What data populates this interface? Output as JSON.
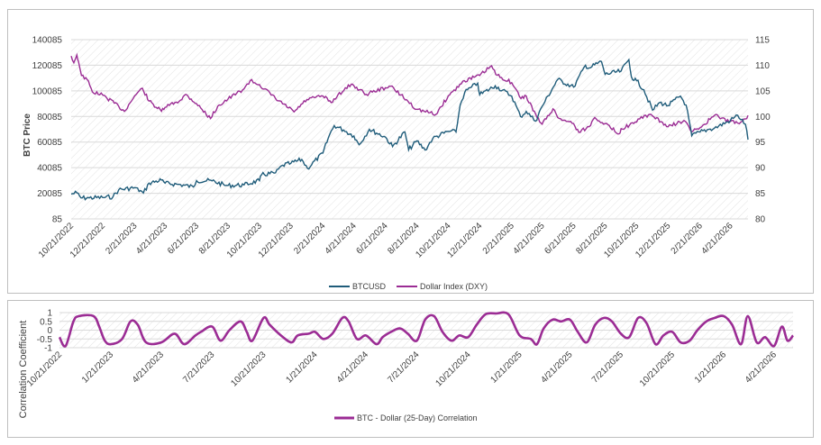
{
  "colors": {
    "btc": "#1f5c7a",
    "dxy": "#9b2c94",
    "corr": "#9b2c94",
    "grid": "#d9d9d9",
    "hatch": "#e3e3e3"
  },
  "chart_data": [
    {
      "type": "line",
      "ylabel": "BTC Price",
      "ylim": [
        85,
        140085
      ],
      "y2lim": [
        80,
        115
      ],
      "y_ticks": [
        "140085",
        "120085",
        "100085",
        "80085",
        "60085",
        "40085",
        "20085",
        "85"
      ],
      "y2_ticks": [
        "115",
        "110",
        "105",
        "100",
        "95",
        "90",
        "85",
        "80"
      ],
      "x_ticks": [
        "10/21/2022",
        "12/21/2022",
        "2/21/2023",
        "4/21/2023",
        "6/21/2023",
        "8/21/2023",
        "10/21/2023",
        "12/21/2023",
        "2/21/2024",
        "4/21/2024",
        "6/21/2024",
        "8/21/2024",
        "10/21/2024",
        "12/21/2024",
        "2/21/2025",
        "4/21/2025",
        "6/21/2025",
        "8/21/2025",
        "10/21/2025",
        "12/21/2025",
        "2/21/2026",
        "4/21/2026"
      ],
      "legend_position": "bottom",
      "series": [
        {
          "name": "BTCUSD",
          "axis": "left",
          "points": [
            [
              "10/21/2022",
              19500
            ],
            [
              "11/1/2022",
              20500
            ],
            [
              "11/9/2022",
              16500
            ],
            [
              "11/25/2022",
              16500
            ],
            [
              "12/21/2022",
              16800
            ],
            [
              "1/10/2023",
              17400
            ],
            [
              "1/21/2023",
              22800
            ],
            [
              "2/21/2023",
              24500
            ],
            [
              "3/10/2023",
              20300
            ],
            [
              "3/21/2023",
              28000
            ],
            [
              "4/14/2023",
              30400
            ],
            [
              "4/21/2023",
              28000
            ],
            [
              "5/21/2023",
              26800
            ],
            [
              "6/15/2023",
              25000
            ],
            [
              "6/21/2023",
              30000
            ],
            [
              "7/21/2023",
              29800
            ],
            [
              "8/17/2023",
              26200
            ],
            [
              "8/21/2023",
              26100
            ],
            [
              "9/21/2023",
              26600
            ],
            [
              "10/21/2023",
              30000
            ],
            [
              "10/25/2023",
              34500
            ],
            [
              "11/21/2023",
              36000
            ],
            [
              "12/5/2023",
              42000
            ],
            [
              "12/21/2023",
              43500
            ],
            [
              "1/11/2024",
              46500
            ],
            [
              "1/22/2024",
              39500
            ],
            [
              "2/21/2024",
              51500
            ],
            [
              "3/5/2024",
              66000
            ],
            [
              "3/14/2024",
              73000
            ],
            [
              "4/1/2024",
              69500
            ],
            [
              "4/21/2024",
              64900
            ],
            [
              "5/1/2024",
              58000
            ],
            [
              "5/21/2024",
              70000
            ],
            [
              "6/21/2024",
              64000
            ],
            [
              "7/5/2024",
              56500
            ],
            [
              "7/29/2024",
              68000
            ],
            [
              "8/5/2024",
              54000
            ],
            [
              "8/21/2024",
              61000
            ],
            [
              "9/6/2024",
              53900
            ],
            [
              "9/21/2024",
              63000
            ],
            [
              "10/21/2024",
              68500
            ],
            [
              "11/5/2024",
              68000
            ],
            [
              "11/13/2024",
              89000
            ],
            [
              "11/22/2024",
              99000
            ],
            [
              "12/5/2024",
              103000
            ],
            [
              "12/17/2024",
              106000
            ],
            [
              "12/21/2024",
              97000
            ],
            [
              "1/20/2025",
              104000
            ],
            [
              "2/21/2025",
              96000
            ],
            [
              "3/10/2025",
              80000
            ],
            [
              "3/21/2025",
              84000
            ],
            [
              "4/8/2025",
              76500
            ],
            [
              "4/21/2025",
              88000
            ],
            [
              "5/21/2025",
              109000
            ],
            [
              "6/21/2025",
              103000
            ],
            [
              "7/14/2025",
              120000
            ],
            [
              "7/21/2025",
              118000
            ],
            [
              "8/14/2025",
              123000
            ],
            [
              "8/21/2025",
              113000
            ],
            [
              "9/21/2025",
              115500
            ],
            [
              "10/6/2025",
              124500
            ],
            [
              "10/11/2025",
              111000
            ],
            [
              "10/21/2025",
              108000
            ],
            [
              "11/4/2025",
              101000
            ],
            [
              "11/21/2025",
              85000
            ],
            [
              "12/5/2025",
              91000
            ],
            [
              "12/21/2025",
              88500
            ],
            [
              "1/14/2026",
              96000
            ],
            [
              "1/25/2026",
              89000
            ],
            [
              "2/5/2026",
              65000
            ],
            [
              "2/21/2026",
              68000
            ],
            [
              "3/10/2026",
              70000
            ],
            [
              "3/21/2026",
              71000
            ],
            [
              "4/21/2026",
              77000
            ],
            [
              "5/5/2026",
              81000
            ],
            [
              "5/20/2026",
              74000
            ],
            [
              "5/25/2026",
              62000
            ]
          ]
        },
        {
          "name": "Dollar Index (DXY)",
          "axis": "right",
          "points": [
            [
              "10/21/2022",
              111.8
            ],
            [
              "10/26/2022",
              110.5
            ],
            [
              "11/1/2022",
              112.0
            ],
            [
              "11/4/2022",
              110.8
            ],
            [
              "11/10/2022",
              108.0
            ],
            [
              "11/21/2022",
              107.2
            ],
            [
              "12/1/2022",
              104.8
            ],
            [
              "12/21/2022",
              104.2
            ],
            [
              "1/21/2023",
              102.0
            ],
            [
              "2/1/2023",
              101.0
            ],
            [
              "2/21/2023",
              104.0
            ],
            [
              "3/8/2023",
              105.5
            ],
            [
              "3/21/2023",
              103.0
            ],
            [
              "4/14/2023",
              101.0
            ],
            [
              "4/21/2023",
              101.8
            ],
            [
              "5/21/2023",
              103.2
            ],
            [
              "5/31/2023",
              104.3
            ],
            [
              "6/21/2023",
              102.5
            ],
            [
              "7/18/2023",
              99.6
            ],
            [
              "8/1/2023",
              102.0
            ],
            [
              "8/21/2023",
              103.4
            ],
            [
              "9/21/2023",
              105.4
            ],
            [
              "10/3/2023",
              107.0
            ],
            [
              "10/21/2023",
              106.2
            ],
            [
              "11/21/2023",
              103.5
            ],
            [
              "12/27/2023",
              100.9
            ],
            [
              "1/21/2024",
              103.3
            ],
            [
              "2/21/2024",
              104.0
            ],
            [
              "3/8/2024",
              102.7
            ],
            [
              "3/21/2024",
              104.2
            ],
            [
              "4/16/2024",
              106.3
            ],
            [
              "4/21/2024",
              106.0
            ],
            [
              "5/15/2024",
              104.3
            ],
            [
              "5/21/2024",
              104.6
            ],
            [
              "6/21/2024",
              105.6
            ],
            [
              "7/1/2024",
              105.9
            ],
            [
              "7/21/2024",
              104.2
            ],
            [
              "8/21/2024",
              101.4
            ],
            [
              "9/27/2024",
              100.4
            ],
            [
              "10/21/2024",
              104.0
            ],
            [
              "11/21/2024",
              107.0
            ],
            [
              "12/21/2024",
              108.0
            ],
            [
              "1/13/2025",
              109.9
            ],
            [
              "1/21/2025",
              108.2
            ],
            [
              "2/21/2025",
              106.6
            ],
            [
              "3/11/2025",
              103.5
            ],
            [
              "3/21/2025",
              104.0
            ],
            [
              "4/11/2025",
              99.8
            ],
            [
              "4/21/2025",
              98.5
            ],
            [
              "5/12/2025",
              101.5
            ],
            [
              "5/21/2025",
              99.8
            ],
            [
              "6/21/2025",
              98.6
            ],
            [
              "7/1/2025",
              96.9
            ],
            [
              "7/21/2025",
              98.0
            ],
            [
              "8/1/2025",
              99.8
            ],
            [
              "8/21/2025",
              98.6
            ],
            [
              "9/17/2025",
              96.6
            ],
            [
              "9/21/2025",
              97.6
            ],
            [
              "10/21/2025",
              98.9
            ],
            [
              "11/5/2025",
              100.2
            ],
            [
              "11/21/2025",
              100.1
            ],
            [
              "12/21/2025",
              98.0
            ],
            [
              "1/21/2026",
              99.2
            ],
            [
              "2/5/2026",
              97.0
            ],
            [
              "2/21/2026",
              97.8
            ],
            [
              "3/21/2026",
              100.2
            ],
            [
              "4/21/2026",
              99.0
            ],
            [
              "5/5/2026",
              98.7
            ],
            [
              "5/20/2026",
              99.5
            ],
            [
              "5/25/2026",
              100.2
            ]
          ]
        }
      ]
    },
    {
      "type": "line",
      "ylabel": "Correlation Coefficient",
      "ylim": [
        -1,
        1
      ],
      "y_ticks": [
        "1",
        "0.5",
        "0",
        "-0.5",
        "-1"
      ],
      "x_ticks": [
        "10/21/2022",
        "1/21/2023",
        "4/21/2023",
        "7/21/2023",
        "10/21/2023",
        "1/21/2024",
        "4/21/2024",
        "7/21/2024",
        "10/21/2024",
        "1/21/2025",
        "4/21/2025",
        "7/21/2025",
        "10/21/2025",
        "1/21/2026",
        "4/21/2026"
      ],
      "legend_position": "bottom",
      "series": [
        {
          "name": "BTC - Dollar (25-Day) Correlation",
          "points": [
            [
              "10/21/2022",
              -0.4
            ],
            [
              "11/1/2022",
              -0.9
            ],
            [
              "11/15/2022",
              0.5
            ],
            [
              "11/25/2022",
              0.8
            ],
            [
              "12/21/2022",
              0.8
            ],
            [
              "12/31/2022",
              0.2
            ],
            [
              "1/10/2023",
              -0.6
            ],
            [
              "1/21/2023",
              -0.8
            ],
            [
              "2/10/2023",
              -0.5
            ],
            [
              "2/25/2023",
              0.5
            ],
            [
              "3/10/2023",
              0.3
            ],
            [
              "3/25/2023",
              -0.7
            ],
            [
              "4/21/2023",
              -0.7
            ],
            [
              "5/15/2023",
              -0.2
            ],
            [
              "6/1/2023",
              -0.8
            ],
            [
              "6/21/2023",
              -0.3
            ],
            [
              "7/1/2023",
              -0.1
            ],
            [
              "7/21/2023",
              0.2
            ],
            [
              "8/5/2023",
              -0.6
            ],
            [
              "8/21/2023",
              0.0
            ],
            [
              "9/10/2023",
              0.5
            ],
            [
              "9/21/2023",
              -0.1
            ],
            [
              "10/1/2023",
              -0.6
            ],
            [
              "10/21/2023",
              0.7
            ],
            [
              "11/1/2023",
              0.3
            ],
            [
              "11/21/2023",
              -0.3
            ],
            [
              "12/10/2023",
              -0.7
            ],
            [
              "12/21/2023",
              -0.3
            ],
            [
              "1/10/2024",
              -0.2
            ],
            [
              "1/21/2024",
              -0.1
            ],
            [
              "2/5/2024",
              -0.5
            ],
            [
              "2/21/2024",
              -0.2
            ],
            [
              "3/10/2024",
              0.7
            ],
            [
              "3/21/2024",
              0.5
            ],
            [
              "4/5/2024",
              -0.5
            ],
            [
              "4/21/2024",
              -0.3
            ],
            [
              "5/10/2024",
              -0.8
            ],
            [
              "5/21/2024",
              -0.4
            ],
            [
              "6/5/2024",
              -0.1
            ],
            [
              "6/21/2024",
              0.1
            ],
            [
              "7/5/2024",
              -0.2
            ],
            [
              "7/21/2024",
              -0.6
            ],
            [
              "8/5/2024",
              0.6
            ],
            [
              "8/21/2024",
              0.8
            ],
            [
              "9/5/2024",
              -0.1
            ],
            [
              "9/21/2024",
              -0.6
            ],
            [
              "10/5/2024",
              -0.3
            ],
            [
              "10/21/2024",
              -0.4
            ],
            [
              "11/5/2024",
              0.3
            ],
            [
              "11/21/2024",
              0.9
            ],
            [
              "12/10/2024",
              0.95
            ],
            [
              "1/1/2025",
              0.9
            ],
            [
              "1/21/2025",
              -0.3
            ],
            [
              "2/10/2025",
              -0.5
            ],
            [
              "2/21/2025",
              -0.8
            ],
            [
              "3/5/2025",
              0.1
            ],
            [
              "3/21/2025",
              0.6
            ],
            [
              "4/5/2025",
              0.5
            ],
            [
              "4/21/2025",
              0.6
            ],
            [
              "5/5/2025",
              -0.1
            ],
            [
              "5/21/2025",
              -0.7
            ],
            [
              "6/5/2025",
              0.3
            ],
            [
              "6/21/2025",
              0.7
            ],
            [
              "7/5/2025",
              0.5
            ],
            [
              "7/21/2025",
              -0.2
            ],
            [
              "8/5/2025",
              -0.4
            ],
            [
              "8/21/2025",
              0.7
            ],
            [
              "9/5/2025",
              0.4
            ],
            [
              "9/21/2025",
              -0.8
            ],
            [
              "10/5/2025",
              -0.3
            ],
            [
              "10/21/2025",
              -0.1
            ],
            [
              "11/5/2025",
              -0.7
            ],
            [
              "11/21/2025",
              -0.6
            ],
            [
              "12/5/2025",
              0.0
            ],
            [
              "12/21/2025",
              0.5
            ],
            [
              "1/5/2026",
              0.7
            ],
            [
              "1/21/2026",
              0.8
            ],
            [
              "2/5/2026",
              0.3
            ],
            [
              "2/21/2026",
              -0.8
            ],
            [
              "3/5/2026",
              0.8
            ],
            [
              "3/21/2026",
              -0.7
            ],
            [
              "4/5/2026",
              -0.4
            ],
            [
              "4/21/2026",
              -0.9
            ],
            [
              "5/5/2026",
              0.2
            ],
            [
              "5/15/2026",
              -0.6
            ],
            [
              "5/25/2026",
              -0.3
            ]
          ]
        }
      ]
    }
  ]
}
